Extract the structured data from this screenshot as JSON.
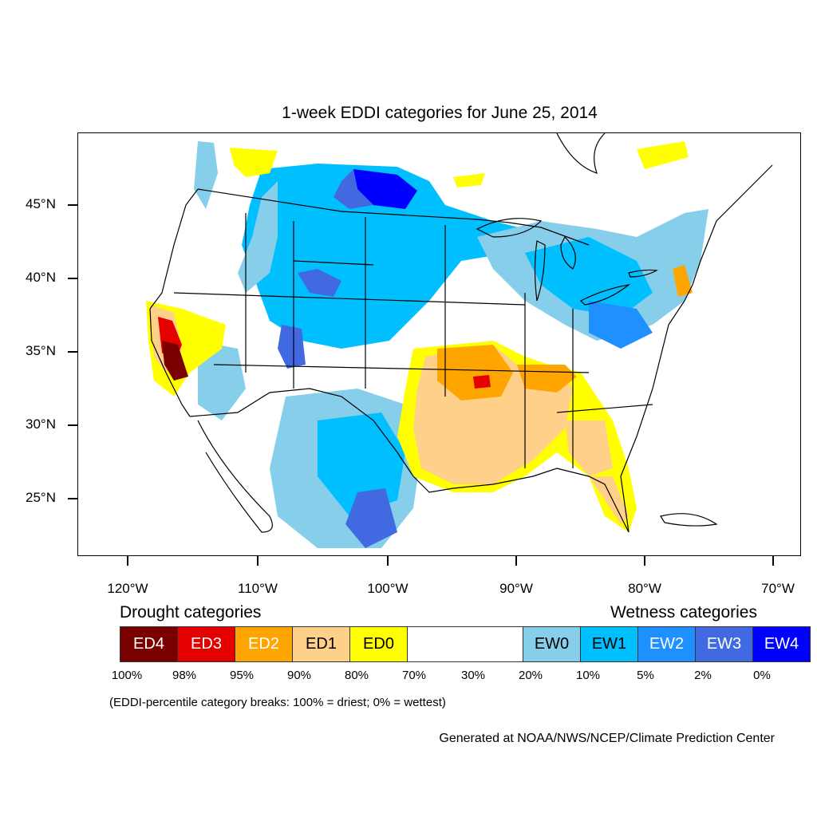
{
  "title": "1-week EDDI categories for June 25, 2014",
  "lat_labels": [
    "45°N",
    "40°N",
    "35°N",
    "30°N",
    "25°N"
  ],
  "lon_labels": [
    "120°W",
    "110°W",
    "100°W",
    "90°W",
    "80°W",
    "70°W"
  ],
  "drought_heading": "Drought categories",
  "wetness_heading": "Wetness categories",
  "categories": [
    {
      "label": "ED4",
      "color": "#7a0000",
      "text_color": "#ffffff"
    },
    {
      "label": "ED3",
      "color": "#e50000",
      "text_color": "#ffffff"
    },
    {
      "label": "ED2",
      "color": "#ffa500",
      "text_color": "#ffffff"
    },
    {
      "label": "ED1",
      "color": "#ffd08a",
      "text_color": "#000000"
    },
    {
      "label": "ED0",
      "color": "#ffff00",
      "text_color": "#000000"
    },
    {
      "label": "",
      "color": "#ffffff",
      "text_color": "#000000"
    },
    {
      "label": "EW0",
      "color": "#87ceeb",
      "text_color": "#000000"
    },
    {
      "label": "EW1",
      "color": "#00bfff",
      "text_color": "#000000"
    },
    {
      "label": "EW2",
      "color": "#1e90ff",
      "text_color": "#ffffff"
    },
    {
      "label": "EW3",
      "color": "#4169e1",
      "text_color": "#ffffff"
    },
    {
      "label": "EW4",
      "color": "#0000ff",
      "text_color": "#ffffff"
    }
  ],
  "percent_breaks": [
    "100%",
    "98%",
    "95%",
    "90%",
    "80%",
    "70%",
    "30%",
    "20%",
    "10%",
    "5%",
    "2%",
    "0%"
  ],
  "note": "(EDDI-percentile category breaks: 100% = driest; 0% = wettest)",
  "credit": "Generated at NOAA/NWS/NCEP/Climate Prediction Center"
}
